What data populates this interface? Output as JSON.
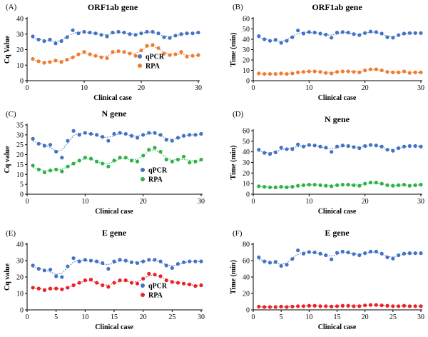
{
  "colors": {
    "qpcr": "#4472C4",
    "rpa_orange": "#ED7D31",
    "rpa_green": "#2DB34A",
    "rpa_red": "#E8242A"
  },
  "chart_data": [
    {
      "letter": "(A)",
      "title": "ORF1ab gene",
      "type": "scatter",
      "xlabel": "Clinical case",
      "ylabel": "Cq Value",
      "xlim": [
        0,
        30
      ],
      "ylim": [
        0,
        40
      ],
      "xticks": [
        0,
        10,
        20,
        30
      ],
      "yticks": [
        0,
        10,
        20,
        30,
        40
      ],
      "legend": "inside-lower-right",
      "rpa_color": "rpa_orange",
      "series": [
        {
          "name": "qPCR",
          "values": [
            28.5,
            26.5,
            25.5,
            26.5,
            24,
            25.5,
            28,
            32.5,
            30.5,
            31.5,
            31,
            30.5,
            29.5,
            28.5,
            31,
            31.5,
            31,
            30,
            29.5,
            30.5,
            31.5,
            31.5,
            30.5,
            28,
            27.5,
            29,
            30,
            30.5,
            30.5,
            31
          ]
        },
        {
          "name": "RPA",
          "values": [
            14,
            12.5,
            11.5,
            12,
            13,
            12,
            13.5,
            15,
            17,
            18.5,
            17,
            16,
            15,
            14.5,
            18.5,
            19,
            18.5,
            17.5,
            16,
            19.5,
            22.5,
            23,
            21,
            17.5,
            16.5,
            17,
            18.5,
            15.5,
            16,
            16.5
          ]
        }
      ]
    },
    {
      "letter": "(B)",
      "title": "ORF1ab gene",
      "type": "scatter",
      "xlabel": "Clinical case",
      "ylabel": "Time (min)",
      "xlim": [
        0,
        30
      ],
      "ylim": [
        0,
        60
      ],
      "xticks": [
        0,
        10,
        20,
        30
      ],
      "yticks": [
        0,
        10,
        20,
        30,
        40,
        50,
        60
      ],
      "legend": "none",
      "rpa_color": "rpa_orange",
      "series": [
        {
          "name": "qPCR",
          "values": [
            43,
            40,
            38.5,
            39.5,
            36.5,
            38.5,
            42,
            48.5,
            45.5,
            47,
            46.5,
            45.5,
            44.5,
            41.5,
            46.5,
            47,
            46.5,
            45,
            44,
            46,
            47.5,
            47,
            45.5,
            42,
            41.5,
            44,
            45.5,
            46,
            46,
            46
          ]
        },
        {
          "name": "RPA",
          "values": [
            7,
            6.5,
            6.5,
            6.5,
            7,
            6.5,
            7,
            8,
            8.5,
            9,
            9,
            8.5,
            7.5,
            7,
            8.5,
            9,
            9,
            8.5,
            8,
            10,
            11,
            11,
            10,
            8.5,
            8,
            8,
            9,
            7.5,
            8,
            8
          ]
        }
      ]
    },
    {
      "letter": "(C)",
      "title": "N gene",
      "type": "scatter",
      "xlabel": "Clinical case",
      "ylabel": "Cq value",
      "xlim": [
        0,
        30
      ],
      "ylim": [
        0,
        35
      ],
      "xticks": [
        0,
        10,
        20,
        30
      ],
      "yticks": [
        0,
        5,
        10,
        15,
        20,
        25,
        30,
        35
      ],
      "legend": "inside-lower-right",
      "rpa_color": "rpa_green",
      "series": [
        {
          "name": "qPCR",
          "values": [
            28,
            25.5,
            24.5,
            25,
            21.5,
            18.5,
            27,
            32,
            30,
            31,
            30.5,
            30,
            29,
            27,
            30.5,
            31,
            30.5,
            29.5,
            28.5,
            30,
            31,
            31,
            30,
            27.5,
            27,
            28.5,
            29.5,
            30,
            30,
            30.5
          ]
        },
        {
          "name": "RPA",
          "values": [
            14.5,
            12.5,
            11,
            12,
            12.5,
            11.5,
            14,
            15.5,
            17,
            18.5,
            18,
            16.5,
            15.5,
            14,
            17,
            18.5,
            18.5,
            17,
            16.5,
            19.5,
            22.5,
            23.5,
            21.5,
            17.5,
            16.5,
            17.5,
            19,
            16,
            16.5,
            17.5
          ]
        }
      ]
    },
    {
      "letter": "(D)",
      "title": "N gene",
      "type": "scatter",
      "xlabel": "Clinical case",
      "ylabel": "Time (min)",
      "xlim": [
        0,
        30
      ],
      "ylim": [
        0,
        60
      ],
      "xticks": [
        0,
        10,
        20,
        30
      ],
      "yticks": [
        0,
        10,
        20,
        30,
        40,
        50,
        60
      ],
      "legend": "none",
      "rpa_color": "rpa_green",
      "series": [
        {
          "name": "qPCR",
          "values": [
            42,
            39,
            38,
            39.5,
            44,
            42.5,
            42.5,
            47,
            45,
            46.5,
            46,
            45,
            44,
            40,
            45,
            46,
            45.5,
            44.5,
            43.5,
            45.5,
            46.5,
            46,
            45,
            42,
            41,
            43.5,
            45,
            45.5,
            45.5,
            45
          ]
        },
        {
          "name": "RPA",
          "values": [
            7.5,
            7,
            6.5,
            6.5,
            7,
            6.5,
            7,
            8,
            8.5,
            9,
            9,
            8.5,
            8,
            7.5,
            8.5,
            9,
            9,
            8.5,
            8,
            10,
            11,
            11,
            10,
            8.5,
            8,
            8.5,
            9,
            8,
            8.5,
            9
          ]
        }
      ]
    },
    {
      "letter": "(E)",
      "title": "E  gene",
      "type": "scatter",
      "xlabel": "Clinical case",
      "ylabel": "Cq value",
      "xlim": [
        0,
        30
      ],
      "ylim": [
        0,
        40
      ],
      "xticks": [
        0,
        5,
        10,
        15,
        20,
        25,
        30
      ],
      "yticks": [
        0,
        10,
        20,
        30,
        40
      ],
      "legend": "inside-lower-right",
      "rpa_color": "rpa_red",
      "series": [
        {
          "name": "qPCR",
          "values": [
            27,
            25,
            24,
            24.5,
            20.5,
            20,
            26.5,
            31.5,
            29.5,
            30.5,
            30,
            29.5,
            28.5,
            25,
            29.5,
            30.5,
            30,
            29,
            28.5,
            29.5,
            30.5,
            30.5,
            29.5,
            27,
            25.5,
            28,
            29,
            29.5,
            29.5,
            29.5
          ]
        },
        {
          "name": "RPA",
          "values": [
            13.5,
            13,
            12,
            13,
            13,
            12.5,
            13.5,
            15,
            16.5,
            18,
            18.5,
            16.5,
            15,
            14,
            16.5,
            18,
            18,
            16.5,
            16,
            19,
            22,
            21.5,
            20.5,
            18,
            17,
            16.5,
            16,
            15.5,
            14.5,
            15
          ]
        }
      ]
    },
    {
      "letter": "(F)",
      "title": "E  gene",
      "type": "scatter",
      "xlabel": "Clinical case",
      "ylabel": "Time (min)",
      "xlim": [
        0,
        30
      ],
      "ylim": [
        0,
        80
      ],
      "xticks": [
        0,
        5,
        10,
        15,
        20,
        25,
        30
      ],
      "yticks": [
        0,
        20,
        40,
        60,
        80
      ],
      "legend": "none",
      "rpa_color": "rpa_red",
      "series": [
        {
          "name": "qPCR",
          "values": [
            64,
            59,
            57.5,
            58.5,
            53.5,
            55,
            62,
            72.5,
            68.5,
            70.5,
            70,
            68.5,
            66.5,
            61.5,
            69.5,
            71,
            70,
            68,
            66.5,
            69,
            71,
            71,
            68.5,
            64,
            62.5,
            66.5,
            68.5,
            69,
            69,
            69
          ]
        },
        {
          "name": "RPA",
          "values": [
            4,
            3.5,
            3.5,
            3.5,
            4,
            3.5,
            4,
            4.5,
            4.5,
            5,
            5,
            4.5,
            4.5,
            4,
            4.5,
            5,
            5,
            4.5,
            4.5,
            5.5,
            6,
            6,
            5.5,
            5,
            4.5,
            4.5,
            5,
            4.5,
            4.5,
            4.5
          ]
        }
      ]
    }
  ]
}
